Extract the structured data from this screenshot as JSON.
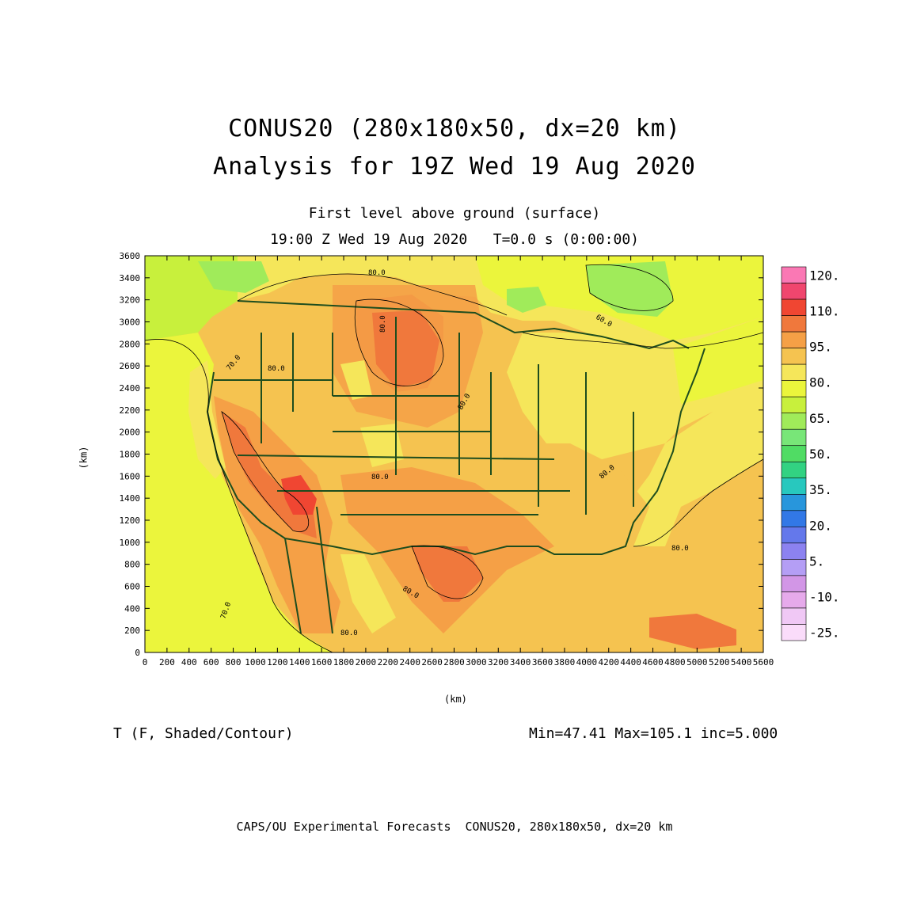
{
  "header": {
    "title_line1": "CONUS20 (280x180x50, dx=20 km)",
    "title_line2": "Analysis for 19Z Wed 19 Aug 2020",
    "level": "First level above ground (surface)",
    "time": "19:00 Z Wed 19 Aug 2020   T=0.0 s (0:00:00)"
  },
  "axes": {
    "x_unit": "(km)",
    "y_unit": "(km)",
    "x_ticks": [
      "0",
      "200",
      "400",
      "600",
      "800",
      "1000",
      "1200",
      "1400",
      "1600",
      "1800",
      "2000",
      "2200",
      "2400",
      "2600",
      "2800",
      "3000",
      "3200",
      "3400",
      "3600",
      "3800",
      "4000",
      "4200",
      "4400",
      "4600",
      "4800",
      "5000",
      "5200",
      "5400",
      "5600"
    ],
    "y_ticks": [
      "0",
      "200",
      "400",
      "600",
      "800",
      "1000",
      "1200",
      "1400",
      "1600",
      "1800",
      "2000",
      "2200",
      "2400",
      "2600",
      "2800",
      "3000",
      "3200",
      "3400",
      "3600"
    ],
    "x_range": [
      0,
      5600
    ],
    "y_range": [
      0,
      3600
    ]
  },
  "colorbar": {
    "labels": [
      "120.",
      "110.",
      "95.",
      "80.",
      "65.",
      "50.",
      "35.",
      "20.",
      "5.",
      "-10.",
      "-25."
    ],
    "colors": [
      "#fa78b4",
      "#f0466e",
      "#f04632",
      "#f0783c",
      "#f5a046",
      "#f5c350",
      "#f5e65a",
      "#ebf53c",
      "#c8f03c",
      "#a0eb5a",
      "#78e678",
      "#50dc64",
      "#32d282",
      "#28c8be",
      "#2896dc",
      "#3278e6",
      "#6478eb",
      "#8c82f0",
      "#b49ef5",
      "#d296e6",
      "#e6aaeb",
      "#f0c8f5",
      "#fadcfa"
    ]
  },
  "map": {
    "contour_labels": [
      "80.0",
      "80.0",
      "80.0",
      "80.0",
      "80.0",
      "80.0",
      "80.0",
      "80.0",
      "70.0",
      "70.0",
      "60.0",
      "80.0"
    ]
  },
  "footer": {
    "field": "T (F, Shaded/Contour)",
    "stats": "Min=47.41 Max=105.1 inc=5.000",
    "credit": "CAPS/OU Experimental Forecasts  CONUS20, 280x180x50, dx=20 km"
  }
}
